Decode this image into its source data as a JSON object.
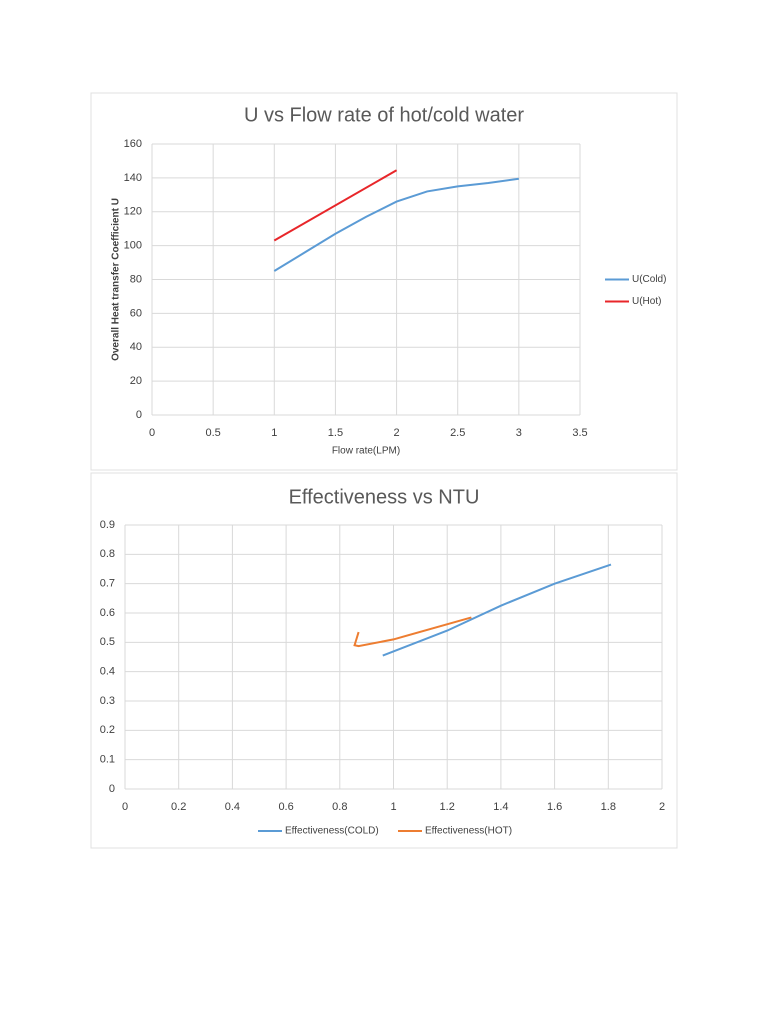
{
  "chart_data": [
    {
      "type": "line",
      "title": "U vs Flow rate of hot/cold water",
      "xlabel": "Flow rate(LPM)",
      "ylabel": "Overall Heat transfer Coefficient U",
      "xlim": [
        0,
        3.5
      ],
      "xticks": [
        0,
        0.5,
        1,
        1.5,
        2,
        2.5,
        3,
        3.5
      ],
      "ylim": [
        0,
        160
      ],
      "yticks": [
        0,
        20,
        40,
        60,
        80,
        100,
        120,
        140,
        160
      ],
      "grid": true,
      "legend": "right",
      "series": [
        {
          "name": "U(Cold)",
          "color": "#5b9bd5",
          "x": [
            1,
            1.25,
            1.5,
            1.75,
            2,
            2.25,
            2.5,
            2.75,
            3
          ],
          "values": [
            85,
            96,
            107,
            117,
            126,
            132,
            135,
            137,
            139.5
          ]
        },
        {
          "name": "U(Hot)",
          "color": "#e8262a",
          "x": [
            1,
            2
          ],
          "values": [
            103,
            144.5
          ]
        }
      ]
    },
    {
      "type": "line",
      "title": "Effectiveness vs NTU",
      "xlim": [
        0,
        2
      ],
      "xticks": [
        0,
        0.2,
        0.4,
        0.6,
        0.8,
        1,
        1.2,
        1.4,
        1.6,
        1.8,
        2
      ],
      "ylim": [
        0,
        0.9
      ],
      "yticks": [
        0,
        0.1,
        0.2,
        0.3,
        0.4,
        0.5,
        0.6,
        0.7,
        0.8,
        0.9
      ],
      "grid": true,
      "legend": "bottom",
      "series": [
        {
          "name": "Effectiveness(COLD)",
          "color": "#5b9bd5",
          "x": [
            0.96,
            1.2,
            1.4,
            1.6,
            1.81
          ],
          "values": [
            0.455,
            0.54,
            0.625,
            0.7,
            0.765
          ]
        },
        {
          "name": "Effectiveness(HOT)",
          "color": "#ed7d31",
          "x": [
            0.87,
            0.855,
            0.87,
            1.0,
            1.29
          ],
          "values": [
            0.535,
            0.49,
            0.487,
            0.51,
            0.585
          ]
        }
      ]
    }
  ]
}
